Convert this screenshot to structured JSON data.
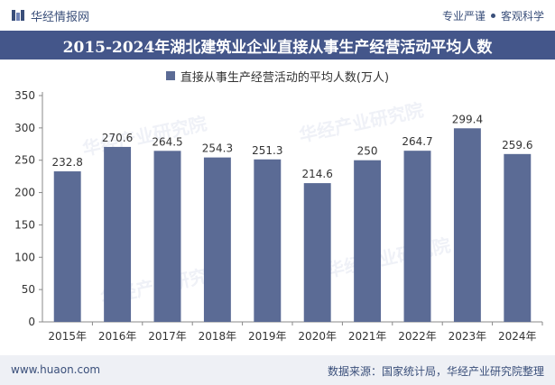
{
  "header": {
    "brand": "华经情报网",
    "tagline_left": "专业严谨",
    "tagline_right": "客观科学"
  },
  "title": "2015-2024年湖北建筑业企业直接从事生产经营活动平均人数",
  "footer": {
    "site": "www.huaon.com",
    "source": "数据来源：国家统计局，华经产业研究院整理"
  },
  "watermark": "华经产业研究院",
  "colors": {
    "bar": "#5b6b95",
    "title_bg": "#44568a",
    "footer_bg": "#eef0f5"
  },
  "chart_data": {
    "type": "bar",
    "categories": [
      "2015年",
      "2016年",
      "2017年",
      "2018年",
      "2019年",
      "2020年",
      "2021年",
      "2022年",
      "2023年",
      "2024年"
    ],
    "series": [
      {
        "name": "直接从事生产经营活动的平均人数(万人)",
        "values": [
          232.8,
          270.6,
          264.5,
          254.3,
          251.3,
          214.6,
          250,
          264.7,
          299.4,
          259.6
        ],
        "labels": [
          "232.8",
          "270.6",
          "264.5",
          "254.3",
          "251.3",
          "214.6",
          "250",
          "264.7",
          "299.4",
          "259.6"
        ]
      }
    ],
    "ylim": [
      0,
      350
    ],
    "yticks": [
      0,
      50,
      100,
      150,
      200,
      250,
      300,
      350
    ],
    "grid": false,
    "legend": "top-center"
  }
}
